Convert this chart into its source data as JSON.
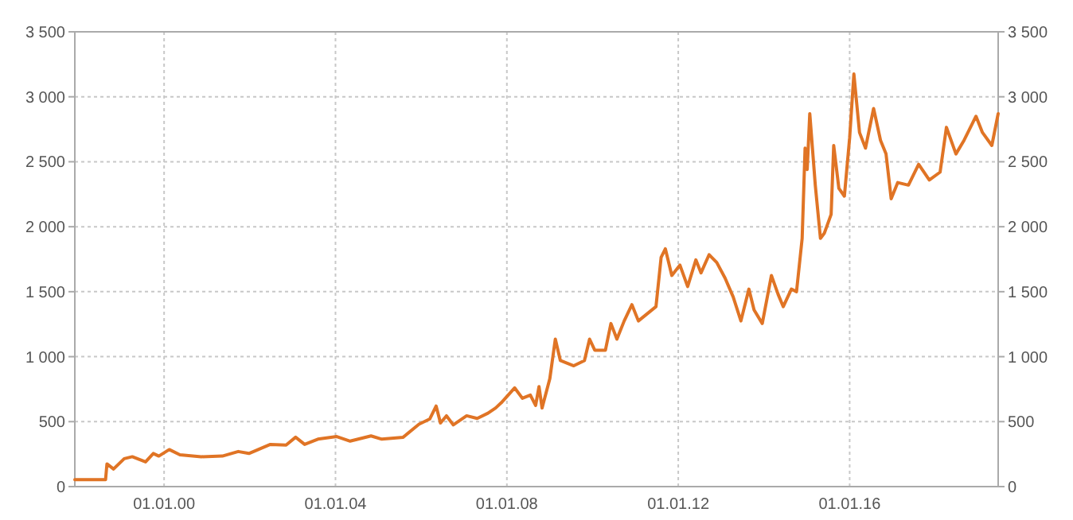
{
  "chart_data": {
    "type": "line",
    "grid": true,
    "line_style": "solid",
    "xlim": [
      "1997-12-01",
      "2019-06-20"
    ],
    "xticks": [
      {
        "value": "2000-01-01",
        "label": "01.01.00"
      },
      {
        "value": "2004-01-01",
        "label": "01.01.04"
      },
      {
        "value": "2008-01-01",
        "label": "01.01.08"
      },
      {
        "value": "2012-01-01",
        "label": "01.01.12"
      },
      {
        "value": "2016-01-01",
        "label": "01.01.16"
      }
    ],
    "ylim": [
      0,
      3500
    ],
    "yticks": [
      {
        "value": 0,
        "label": "0"
      },
      {
        "value": 500,
        "label": "500"
      },
      {
        "value": 1000,
        "label": "1 000"
      },
      {
        "value": 1500,
        "label": "1 500"
      },
      {
        "value": 2000,
        "label": "2 000"
      },
      {
        "value": 2500,
        "label": "2 500"
      },
      {
        "value": 3000,
        "label": "3 000"
      },
      {
        "value": 3500,
        "label": "3 500"
      }
    ],
    "y2lim": [
      0,
      3500
    ],
    "y2ticks": [
      {
        "value": 0,
        "label": "0"
      },
      {
        "value": 500,
        "label": "500"
      },
      {
        "value": 1000,
        "label": "1 000"
      },
      {
        "value": 1500,
        "label": "1 500"
      },
      {
        "value": 2000,
        "label": "2 000"
      },
      {
        "value": 2500,
        "label": "2 500"
      },
      {
        "value": 3000,
        "label": "3 000"
      },
      {
        "value": 3500,
        "label": "3 500"
      }
    ],
    "x": [
      "1997-12-01",
      "1998-08-20",
      "1998-09-01",
      "1998-10-27",
      "1999-01-26",
      "1999-04-05",
      "1999-07-27",
      "1999-10-01",
      "1999-11-17",
      "2000-02-14",
      "2000-05-15",
      "2000-11-13",
      "2001-05-12",
      "2001-09-24",
      "2001-12-24",
      "2002-06-25",
      "2002-11-06",
      "2003-01-26",
      "2003-04-13",
      "2003-08-04",
      "2004-01-12",
      "2004-05-05",
      "2004-10-30",
      "2005-01-30",
      "2005-07-31",
      "2005-12-13",
      "2006-03-14",
      "2006-05-08",
      "2006-06-14",
      "2006-08-04",
      "2006-10-01",
      "2007-01-23",
      "2007-04-23",
      "2007-07-24",
      "2007-09-27",
      "2007-11-14",
      "2008-03-07",
      "2008-05-12",
      "2008-07-19",
      "2008-09-02",
      "2008-10-01",
      "2008-10-27",
      "2009-01-01",
      "2009-02-17",
      "2009-04-01",
      "2009-07-24",
      "2009-10-23",
      "2009-12-06",
      "2010-01-19",
      "2010-04-20",
      "2010-06-06",
      "2010-07-27",
      "2010-09-27",
      "2010-12-02",
      "2011-01-26",
      "2011-06-25",
      "2011-08-08",
      "2011-09-13",
      "2011-11-07",
      "2012-01-15",
      "2012-03-21",
      "2012-05-30",
      "2012-07-13",
      "2012-09-20",
      "2012-11-24",
      "2013-02-03",
      "2013-04-13",
      "2013-06-18",
      "2013-08-25",
      "2013-10-08",
      "2013-12-17",
      "2014-03-05",
      "2014-05-01",
      "2014-06-14",
      "2014-08-22",
      "2014-10-05",
      "2014-11-22",
      "2014-12-17",
      "2015-01-04",
      "2015-01-26",
      "2015-03-14",
      "2015-04-27",
      "2015-05-30",
      "2015-07-27",
      "2015-08-18",
      "2015-10-01",
      "2015-11-17",
      "2016-01-01",
      "2016-02-06",
      "2016-03-25",
      "2016-05-15",
      "2016-07-23",
      "2016-09-20",
      "2016-11-06",
      "2016-12-20",
      "2017-02-14",
      "2017-05-16",
      "2017-08-11",
      "2017-11-10",
      "2018-02-10",
      "2018-04-05",
      "2018-06-25",
      "2018-09-02",
      "2018-12-13",
      "2019-02-06",
      "2019-04-27",
      "2019-06-20"
    ],
    "series": [
      {
        "color": "#e07425",
        "values": [
          53,
          53,
          175,
          135,
          215,
          230,
          190,
          255,
          235,
          285,
          245,
          230,
          235,
          270,
          255,
          325,
          320,
          380,
          325,
          365,
          385,
          350,
          390,
          365,
          380,
          480,
          520,
          620,
          490,
          545,
          475,
          545,
          525,
          565,
          605,
          645,
          760,
          680,
          705,
          625,
          770,
          605,
          830,
          1135,
          970,
          930,
          970,
          1135,
          1050,
          1050,
          1255,
          1135,
          1275,
          1400,
          1275,
          1385,
          1765,
          1830,
          1625,
          1705,
          1540,
          1745,
          1645,
          1785,
          1725,
          1605,
          1460,
          1275,
          1520,
          1360,
          1255,
          1625,
          1480,
          1385,
          1520,
          1500,
          1910,
          2605,
          2440,
          2870,
          2320,
          1910,
          1950,
          2095,
          2625,
          2295,
          2235,
          2685,
          3175,
          2725,
          2605,
          2910,
          2665,
          2560,
          2215,
          2340,
          2320,
          2480,
          2360,
          2420,
          2765,
          2560,
          2665,
          2850,
          2725,
          2625,
          2870
        ]
      }
    ]
  }
}
